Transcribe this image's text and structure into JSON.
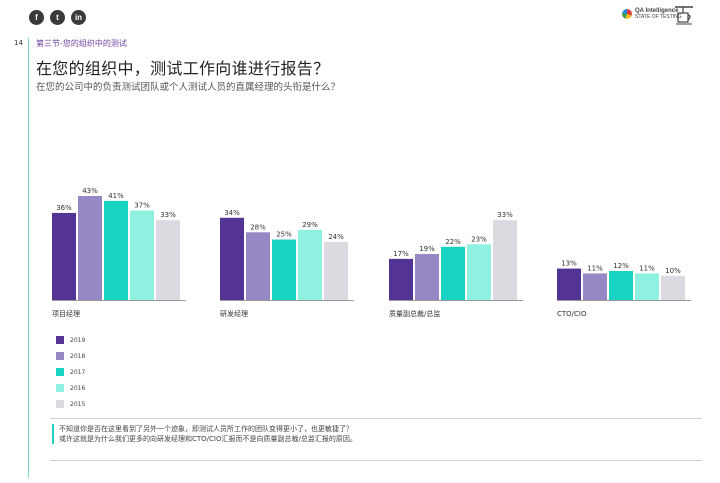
{
  "page": {
    "number": "14",
    "section": "第三节-您的组织中的测试",
    "title": "在您的组织中，测试工作向谁进行报告？",
    "subtitle": "在您的公司中的负责测试团队或个人测试人员的直属经理的头衔是什么？",
    "note_line1": "不知道你是否在这里看到了另外一个迹象，即测试人员所工作的团队变得更小了，也更敏捷了？",
    "note_line2": "或许这就是为什么我们更多的向研发经理和CTO/CIO汇报而不是向质量副总裁/总监汇报的原因。"
  },
  "header": {
    "social": [
      {
        "icon": "facebook-icon",
        "glyph": "f"
      },
      {
        "icon": "twitter-icon",
        "glyph": "t"
      },
      {
        "icon": "linkedin-icon",
        "glyph": "in"
      }
    ],
    "logo_name": "QA Intelligence",
    "logo_tag": "STATE OF TESTING"
  },
  "colors": {
    "2019": "#533494",
    "2018": "#9787c4",
    "2017": "#18d3c2",
    "2016": "#8ff2e0",
    "2015": "#dcd9e1",
    "accent_line": "#7fd6d0",
    "section": "#6b3fa0"
  },
  "chart_data": {
    "type": "bar",
    "title": "在您的组织中，测试工作向谁进行报告？",
    "categories": [
      "项目经理",
      "研发经理",
      "质量副总裁/总监",
      "CTO/CIO"
    ],
    "series": [
      {
        "name": "2019",
        "values": [
          36,
          34,
          17,
          13
        ]
      },
      {
        "name": "2018",
        "values": [
          43,
          28,
          19,
          11
        ]
      },
      {
        "name": "2017",
        "values": [
          41,
          25,
          22,
          12
        ]
      },
      {
        "name": "2016",
        "values": [
          37,
          29,
          23,
          11
        ]
      },
      {
        "name": "2015",
        "values": [
          33,
          24,
          33,
          10
        ]
      }
    ],
    "value_suffix": "%",
    "ylim": [
      0,
      43
    ],
    "legend_position": "bottom-left",
    "grid": false
  }
}
